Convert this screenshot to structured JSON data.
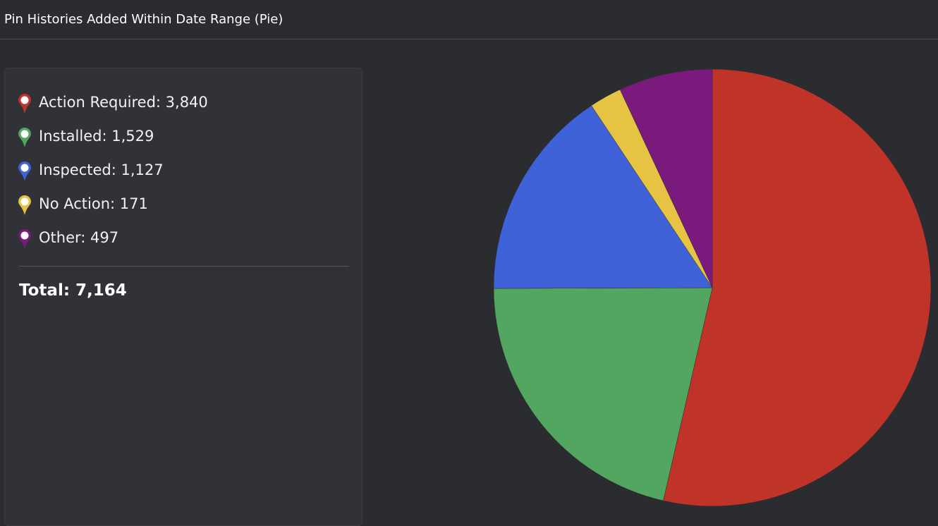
{
  "header": {
    "title": "Pin Histories Added Within Date Range (Pie)"
  },
  "legend": {
    "items": [
      {
        "label": "Action Required: 3,840",
        "color": "#c03328",
        "icon": "map-pin-icon"
      },
      {
        "label": "Installed: 1,529",
        "color": "#52a65f",
        "icon": "map-pin-icon"
      },
      {
        "label": "Inspected: 1,127",
        "color": "#4062d8",
        "icon": "map-pin-icon"
      },
      {
        "label": "No Action: 171",
        "color": "#e6c343",
        "icon": "map-pin-icon"
      },
      {
        "label": "Other: 497",
        "color": "#7a1a7d",
        "icon": "map-pin-icon"
      }
    ],
    "total_label": "Total: 7,164"
  },
  "chart_data": {
    "type": "pie",
    "title": "Pin Histories Added Within Date Range (Pie)",
    "categories": [
      "Action Required",
      "Installed",
      "Inspected",
      "No Action",
      "Other"
    ],
    "values": [
      3840,
      1529,
      1127,
      171,
      497
    ],
    "colors": [
      "#c03328",
      "#52a65f",
      "#4062d8",
      "#e6c343",
      "#7a1a7d"
    ],
    "total": 7164,
    "start_angle": "top",
    "direction": "clockwise",
    "legend_placement": "left"
  }
}
